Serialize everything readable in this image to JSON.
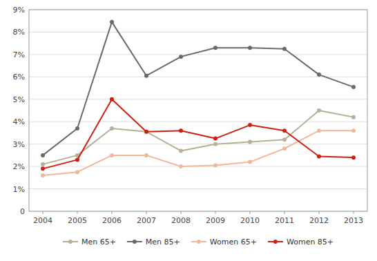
{
  "chart_data": {
    "type": "line",
    "x": [
      2004,
      2005,
      2006,
      2007,
      2008,
      2009,
      2010,
      2011,
      2012,
      2013
    ],
    "xlim": [
      2003.6,
      2013.4
    ],
    "xticks": [
      2004,
      2005,
      2006,
      2007,
      2008,
      2009,
      2010,
      2011,
      2012,
      2013
    ],
    "ylim": [
      0,
      9
    ],
    "yticks": [
      0,
      {
        "value": 1,
        "label": "1%"
      },
      {
        "value": 2,
        "label": "2%"
      },
      {
        "value": 3,
        "label": "3%"
      },
      {
        "value": 4,
        "label": "4%"
      },
      {
        "value": 5,
        "label": "5%"
      },
      {
        "value": 6,
        "label": "6%"
      },
      {
        "value": 7,
        "label": "7%"
      },
      {
        "value": 8,
        "label": "8%"
      },
      {
        "value": 9,
        "label": "9%"
      }
    ],
    "grid": true,
    "legend": "bottom",
    "marker": "circle",
    "series": [
      {
        "name": "Men 65+",
        "color": "#b8b096",
        "values": [
          2.1,
          2.5,
          3.7,
          3.55,
          2.7,
          3.0,
          3.1,
          3.2,
          4.5,
          4.2
        ]
      },
      {
        "name": "Men 85+",
        "color": "#706860",
        "values": [
          2.5,
          3.7,
          8.45,
          6.05,
          6.9,
          7.3,
          7.3,
          7.25,
          6.1,
          5.55
        ]
      },
      {
        "name": "Women 65+",
        "color": "#f0b898",
        "values": [
          1.6,
          1.75,
          2.5,
          2.5,
          2.0,
          2.05,
          2.2,
          2.8,
          3.6,
          3.6
        ]
      },
      {
        "name": "Women 85+",
        "color": "#cc2010",
        "values": [
          1.9,
          2.3,
          5.0,
          3.55,
          3.6,
          3.25,
          3.85,
          3.6,
          2.45,
          2.4
        ]
      }
    ]
  }
}
